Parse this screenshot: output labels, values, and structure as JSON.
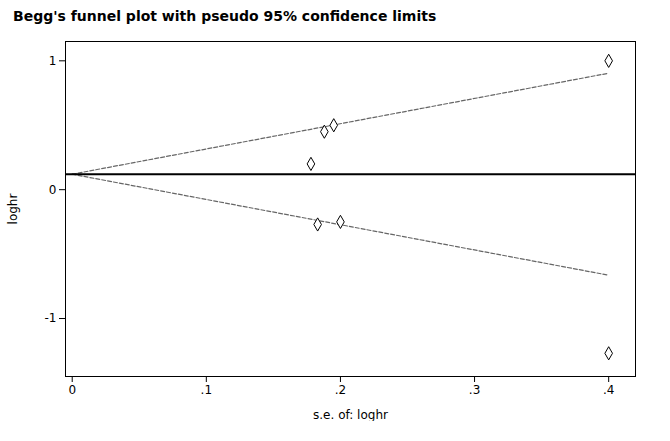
{
  "chart_data": {
    "type": "scatter",
    "title": "Begg's funnel plot with pseudo 95% confidence limits",
    "xlabel": "s.e. of: loghr",
    "ylabel": "loghr",
    "xlim": [
      -0.005,
      0.42
    ],
    "ylim": [
      -1.45,
      1.15
    ],
    "xticks": [
      0,
      {
        "value": 0.1,
        "label": ".1"
      },
      {
        "value": 0.2,
        "label": ".2"
      },
      {
        "value": 0.3,
        "label": ".3"
      },
      {
        "value": 0.4,
        "label": ".4"
      }
    ],
    "yticks": [
      -1,
      0,
      1
    ],
    "grid": false,
    "series": [
      {
        "type": "scatter",
        "marker": "diamond",
        "color": "#000000",
        "x": [
          0.183,
          0.2,
          0.178,
          0.188,
          0.195,
          0.4,
          0.4
        ],
        "values": [
          -0.27,
          -0.25,
          0.2,
          0.45,
          0.5,
          1.0,
          -1.27
        ]
      },
      {
        "type": "line",
        "line_style": "dashed",
        "color": "#666666",
        "x": [
          0.0,
          0.4
        ],
        "values": [
          0.12,
          0.904
        ]
      },
      {
        "type": "line",
        "line_style": "dashed",
        "color": "#666666",
        "x": [
          0.0,
          0.4
        ],
        "values": [
          0.12,
          -0.664
        ]
      },
      {
        "type": "hline",
        "color": "#000000",
        "values": [
          0.12
        ]
      }
    ]
  }
}
